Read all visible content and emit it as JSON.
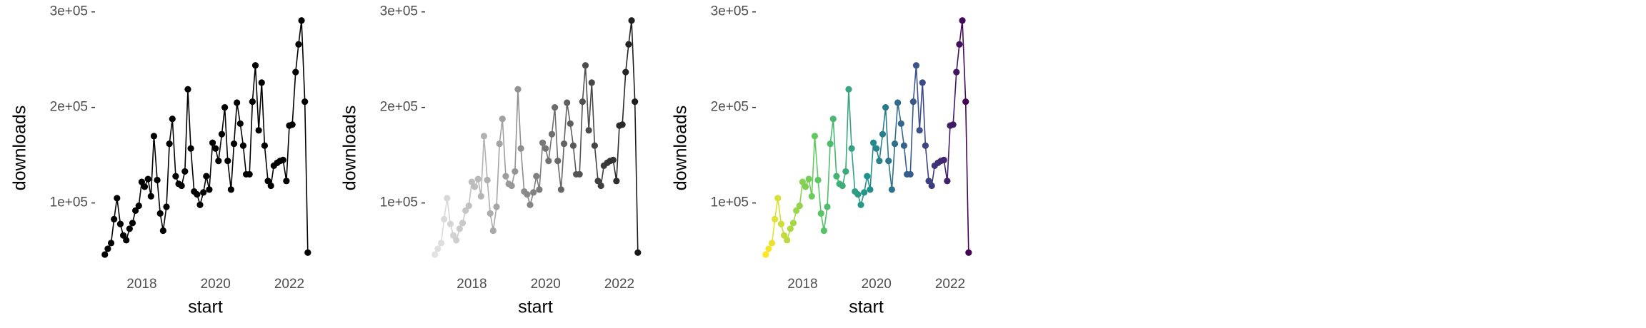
{
  "chart_data": [
    {
      "type": "line",
      "x_label": "start",
      "y_label": "downloads",
      "colors": [
        "#000000"
      ],
      "x": [
        2017.0,
        2017.08,
        2017.17,
        2017.25,
        2017.33,
        2017.42,
        2017.5,
        2017.58,
        2017.67,
        2017.75,
        2017.83,
        2017.92,
        2018.0,
        2018.08,
        2018.17,
        2018.25,
        2018.33,
        2018.42,
        2018.5,
        2018.58,
        2018.67,
        2018.75,
        2018.83,
        2018.92,
        2019.0,
        2019.08,
        2019.17,
        2019.25,
        2019.33,
        2019.42,
        2019.5,
        2019.58,
        2019.67,
        2019.75,
        2019.83,
        2019.92,
        2020.0,
        2020.08,
        2020.17,
        2020.25,
        2020.33,
        2020.42,
        2020.5,
        2020.58,
        2020.67,
        2020.75,
        2020.83,
        2020.92,
        2021.0,
        2021.08,
        2021.17,
        2021.25,
        2021.33,
        2021.42,
        2021.5,
        2021.58,
        2021.67,
        2021.75,
        2021.83,
        2021.92,
        2022.0,
        2022.08,
        2022.17,
        2022.25,
        2022.33,
        2022.42,
        2022.5
      ],
      "values": [
        46000,
        52000,
        58000,
        83000,
        105000,
        78000,
        66000,
        61000,
        73000,
        79000,
        92000,
        97000,
        122000,
        117000,
        125000,
        107000,
        170000,
        124000,
        89000,
        71000,
        96000,
        162000,
        188000,
        128000,
        120000,
        118000,
        133000,
        219000,
        157000,
        112000,
        109000,
        98000,
        111000,
        128000,
        114000,
        163000,
        157000,
        144000,
        172000,
        200000,
        144000,
        114000,
        162000,
        205000,
        183000,
        160000,
        130000,
        130000,
        206000,
        244000,
        176000,
        226000,
        160000,
        123000,
        118000,
        139000,
        142000,
        144000,
        145000,
        123000,
        181000,
        182000,
        237000,
        266000,
        291000,
        206000,
        48000
      ],
      "xlim": [
        2016.85,
        2022.6
      ],
      "xticks": [
        2018,
        2020,
        2022
      ],
      "ylim": [
        40000,
        305000
      ],
      "yticks": [
        {
          "value": 100000,
          "label": "1e+05"
        },
        {
          "value": 200000,
          "label": "2e+05"
        },
        {
          "value": 300000,
          "label": "3e+05"
        }
      ]
    },
    {
      "type": "line",
      "x_label": "start",
      "y_label": "downloads",
      "colors": [
        "#e3e3e3",
        "#1a1a1a"
      ],
      "x": [
        2017.0,
        2017.08,
        2017.17,
        2017.25,
        2017.33,
        2017.42,
        2017.5,
        2017.58,
        2017.67,
        2017.75,
        2017.83,
        2017.92,
        2018.0,
        2018.08,
        2018.17,
        2018.25,
        2018.33,
        2018.42,
        2018.5,
        2018.58,
        2018.67,
        2018.75,
        2018.83,
        2018.92,
        2019.0,
        2019.08,
        2019.17,
        2019.25,
        2019.33,
        2019.42,
        2019.5,
        2019.58,
        2019.67,
        2019.75,
        2019.83,
        2019.92,
        2020.0,
        2020.08,
        2020.17,
        2020.25,
        2020.33,
        2020.42,
        2020.5,
        2020.58,
        2020.67,
        2020.75,
        2020.83,
        2020.92,
        2021.0,
        2021.08,
        2021.17,
        2021.25,
        2021.33,
        2021.42,
        2021.5,
        2021.58,
        2021.67,
        2021.75,
        2021.83,
        2021.92,
        2022.0,
        2022.08,
        2022.17,
        2022.25,
        2022.33,
        2022.42,
        2022.5
      ],
      "values": [
        46000,
        52000,
        58000,
        83000,
        105000,
        78000,
        66000,
        61000,
        73000,
        79000,
        92000,
        97000,
        122000,
        117000,
        125000,
        107000,
        170000,
        124000,
        89000,
        71000,
        96000,
        162000,
        188000,
        128000,
        120000,
        118000,
        133000,
        219000,
        157000,
        112000,
        109000,
        98000,
        111000,
        128000,
        114000,
        163000,
        157000,
        144000,
        172000,
        200000,
        144000,
        114000,
        162000,
        205000,
        183000,
        160000,
        130000,
        130000,
        206000,
        244000,
        176000,
        226000,
        160000,
        123000,
        118000,
        139000,
        142000,
        144000,
        145000,
        123000,
        181000,
        182000,
        237000,
        266000,
        291000,
        206000,
        48000
      ],
      "xlim": [
        2016.85,
        2022.6
      ],
      "xticks": [
        2018,
        2020,
        2022
      ],
      "ylim": [
        40000,
        305000
      ],
      "yticks": [
        {
          "value": 100000,
          "label": "1e+05"
        },
        {
          "value": 200000,
          "label": "2e+05"
        },
        {
          "value": 300000,
          "label": "3e+05"
        }
      ]
    },
    {
      "type": "line",
      "x_label": "start",
      "y_label": "downloads",
      "colors": [
        "#fde725",
        "#5ec962",
        "#21918c",
        "#3b528b",
        "#440154"
      ],
      "x": [
        2017.0,
        2017.08,
        2017.17,
        2017.25,
        2017.33,
        2017.42,
        2017.5,
        2017.58,
        2017.67,
        2017.75,
        2017.83,
        2017.92,
        2018.0,
        2018.08,
        2018.17,
        2018.25,
        2018.33,
        2018.42,
        2018.5,
        2018.58,
        2018.67,
        2018.75,
        2018.83,
        2018.92,
        2019.0,
        2019.08,
        2019.17,
        2019.25,
        2019.33,
        2019.42,
        2019.5,
        2019.58,
        2019.67,
        2019.75,
        2019.83,
        2019.92,
        2020.0,
        2020.08,
        2020.17,
        2020.25,
        2020.33,
        2020.42,
        2020.5,
        2020.58,
        2020.67,
        2020.75,
        2020.83,
        2020.92,
        2021.0,
        2021.08,
        2021.17,
        2021.25,
        2021.33,
        2021.42,
        2021.5,
        2021.58,
        2021.67,
        2021.75,
        2021.83,
        2021.92,
        2022.0,
        2022.08,
        2022.17,
        2022.25,
        2022.33,
        2022.42,
        2022.5
      ],
      "values": [
        46000,
        52000,
        58000,
        83000,
        105000,
        78000,
        66000,
        61000,
        73000,
        79000,
        92000,
        97000,
        122000,
        117000,
        125000,
        107000,
        170000,
        124000,
        89000,
        71000,
        96000,
        162000,
        188000,
        128000,
        120000,
        118000,
        133000,
        219000,
        157000,
        112000,
        109000,
        98000,
        111000,
        128000,
        114000,
        163000,
        157000,
        144000,
        172000,
        200000,
        144000,
        114000,
        162000,
        205000,
        183000,
        160000,
        130000,
        130000,
        206000,
        244000,
        176000,
        226000,
        160000,
        123000,
        118000,
        139000,
        142000,
        144000,
        145000,
        123000,
        181000,
        182000,
        237000,
        266000,
        291000,
        206000,
        48000
      ],
      "xlim": [
        2016.85,
        2022.6
      ],
      "xticks": [
        2018,
        2020,
        2022
      ],
      "ylim": [
        40000,
        305000
      ],
      "yticks": [
        {
          "value": 100000,
          "label": "1e+05"
        },
        {
          "value": 200000,
          "label": "2e+05"
        },
        {
          "value": 300000,
          "label": "3e+05"
        }
      ]
    }
  ]
}
